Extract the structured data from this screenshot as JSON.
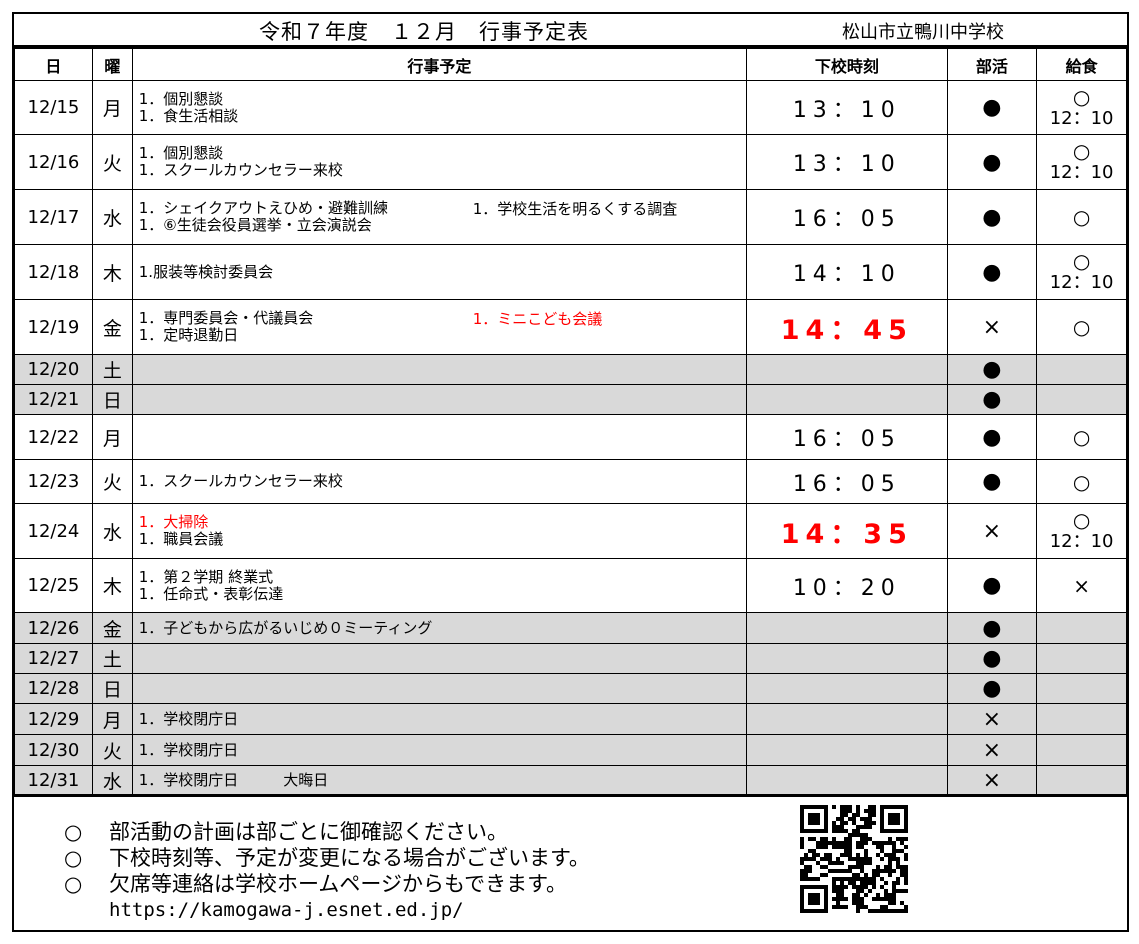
{
  "title": "令和７年度　１２月　行事予定表",
  "school": "松山市立鴨川中学校",
  "headers": {
    "date": "日",
    "dow": "曜",
    "events": "行事予定",
    "dismissal": "下校時刻",
    "club": "部活",
    "lunch": "給食"
  },
  "colors": {
    "red": "#ff0000",
    "holiday_gray": "#d9d9d9"
  },
  "rows": [
    {
      "date": "12/15",
      "dow": "月",
      "events": [
        {
          "text": "1．個別懇談"
        },
        {
          "text": "1．食生活相談"
        }
      ],
      "time": "13：10",
      "club": "●",
      "lunch": "○",
      "lunch_time": "12：10"
    },
    {
      "date": "12/16",
      "dow": "火",
      "events": [
        {
          "text": "1．個別懇談"
        },
        {
          "text": "1．スクールカウンセラー来校"
        }
      ],
      "time": "13：10",
      "club": "●",
      "lunch": "○",
      "lunch_time": "12：10"
    },
    {
      "date": "12/17",
      "dow": "水",
      "events": [
        {
          "text": "1．シェイクアウトえひめ・避難訓練"
        },
        {
          "text": "1．⑥生徒会役員選挙・立会演説会"
        }
      ],
      "side": {
        "text": "1．学校生活を明るくする調査",
        "red": false
      },
      "time": "16：05",
      "club": "●",
      "lunch": "○"
    },
    {
      "date": "12/18",
      "dow": "木",
      "events": [
        {
          "text": "1.服装等検討委員会"
        }
      ],
      "time": "14：10",
      "club": "●",
      "lunch": "○",
      "lunch_time": "12：10"
    },
    {
      "date": "12/19",
      "dow": "金",
      "events": [
        {
          "text": "1．専門委員会・代議員会"
        },
        {
          "text": "1．定時退勤日"
        }
      ],
      "side": {
        "text": "1．ミニこども会議",
        "red": true
      },
      "time": "14：45",
      "time_red": true,
      "club": "×",
      "lunch": "○"
    },
    {
      "date": "12/20",
      "dow": "土",
      "events": [],
      "club": "●",
      "gray": true
    },
    {
      "date": "12/21",
      "dow": "日",
      "events": [],
      "club": "●",
      "gray": true
    },
    {
      "date": "12/22",
      "dow": "月",
      "events": [],
      "time": "16：05",
      "club": "●",
      "lunch": "○"
    },
    {
      "date": "12/23",
      "dow": "火",
      "events": [
        {
          "text": "1．スクールカウンセラー来校"
        }
      ],
      "time": "16：05",
      "club": "●",
      "lunch": "○"
    },
    {
      "date": "12/24",
      "dow": "水",
      "events": [
        {
          "text": "1．大掃除",
          "red": true
        },
        {
          "text": "1．職員会議"
        }
      ],
      "time": "14：35",
      "time_red": true,
      "club": "×",
      "lunch": "○",
      "lunch_time": "12：10"
    },
    {
      "date": "12/25",
      "dow": "木",
      "events": [
        {
          "text": "1．第２学期 終業式"
        },
        {
          "text": "1．任命式・表彰伝達"
        }
      ],
      "time": "10：20",
      "club": "●",
      "lunch": "×"
    },
    {
      "date": "12/26",
      "dow": "金",
      "events": [
        {
          "text": "1．子どもから広がるいじめ０ミーティング"
        }
      ],
      "club": "●",
      "gray": true
    },
    {
      "date": "12/27",
      "dow": "土",
      "events": [],
      "club": "●",
      "gray": true
    },
    {
      "date": "12/28",
      "dow": "日",
      "events": [],
      "club": "●",
      "gray": true
    },
    {
      "date": "12/29",
      "dow": "月",
      "events": [
        {
          "text": "1．学校閉庁日"
        }
      ],
      "club": "×",
      "gray": true
    },
    {
      "date": "12/30",
      "dow": "火",
      "events": [
        {
          "text": "1．学校閉庁日"
        }
      ],
      "club": "×",
      "gray": true
    },
    {
      "date": "12/31",
      "dow": "水",
      "events": [
        {
          "text": "1．学校閉庁日　　　大晦日"
        }
      ],
      "club": "×",
      "gray": true
    }
  ],
  "notes": {
    "bullet": "○",
    "items": [
      "部活動の計画は部ごとに御確認ください。",
      "下校時刻等、予定が変更になる場合がございます。",
      "欠席等連絡は学校ホームページからもできます。"
    ],
    "url": "https://kamogawa-j.esnet.ed.jp/"
  }
}
